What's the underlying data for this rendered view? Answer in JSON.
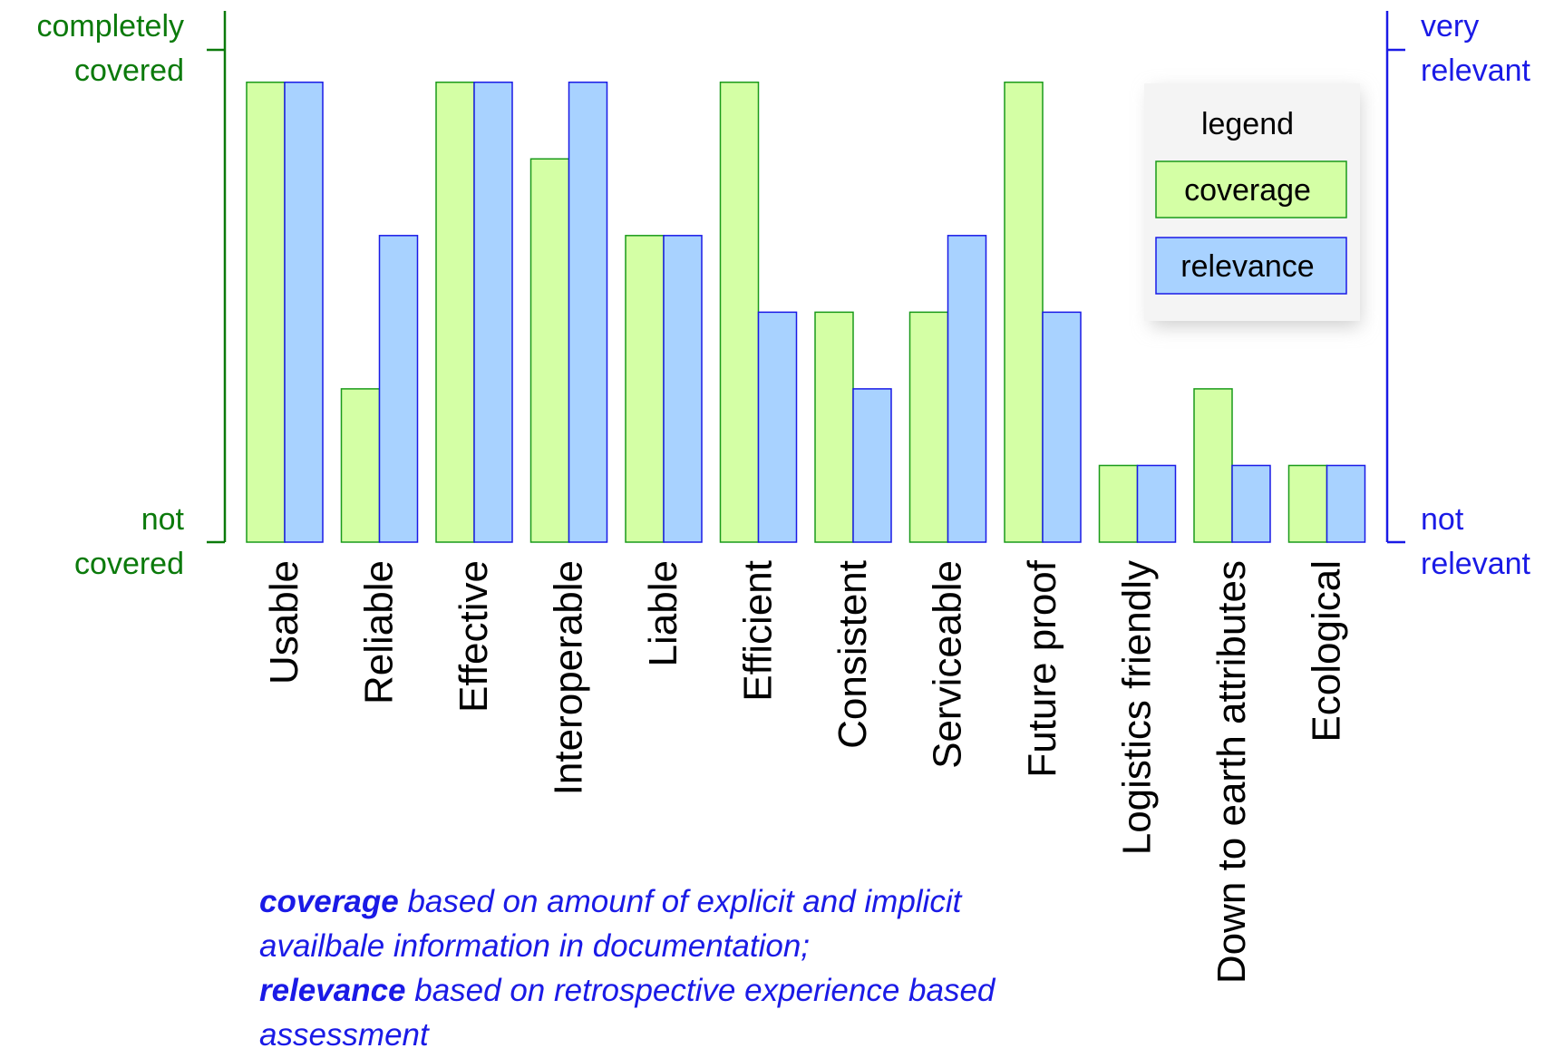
{
  "chart_data": {
    "type": "bar",
    "categories": [
      "Usable",
      "Reliable",
      "Effective",
      "Interoperable",
      "Liable",
      "Efficient",
      "Consistent",
      "Serviceable",
      "Future proof",
      "Logistics friendly",
      "Down to earth attributes",
      "Ecological"
    ],
    "series": [
      {
        "name": "coverage",
        "values": [
          6,
          2,
          6,
          5,
          4,
          6,
          3,
          3,
          6,
          1,
          2,
          1
        ]
      },
      {
        "name": "relevance",
        "values": [
          6,
          4,
          6,
          6,
          4,
          3,
          2,
          4,
          3,
          1,
          1,
          1
        ]
      }
    ],
    "ylim": [
      0,
      6.6
    ],
    "left_axis": {
      "top_label": [
        "completely",
        "covered"
      ],
      "bottom_label": [
        "not",
        "covered"
      ]
    },
    "right_axis": {
      "top_label": [
        "very",
        "relevant"
      ],
      "bottom_label": [
        "not",
        "relevant"
      ]
    },
    "legend": {
      "title": "legend",
      "placement": "top-right",
      "entries": [
        "coverage",
        "relevance"
      ]
    },
    "colors": {
      "coverage_fill": "#d4ffa5",
      "coverage_stroke": "#1a9a1a",
      "relevance_fill": "#a8d2ff",
      "relevance_stroke": "#1a1ae6",
      "left_axis": "#0b7a0b",
      "right_axis": "#1a1ae6"
    },
    "grid": false
  },
  "note": {
    "coverage_word": "coverage",
    "coverage_text": " based on amounf of explicit and implicit availbale information in documentation;",
    "relevance_word": "relevance",
    "relevance_text": " based on retrospective experience based assessment"
  }
}
